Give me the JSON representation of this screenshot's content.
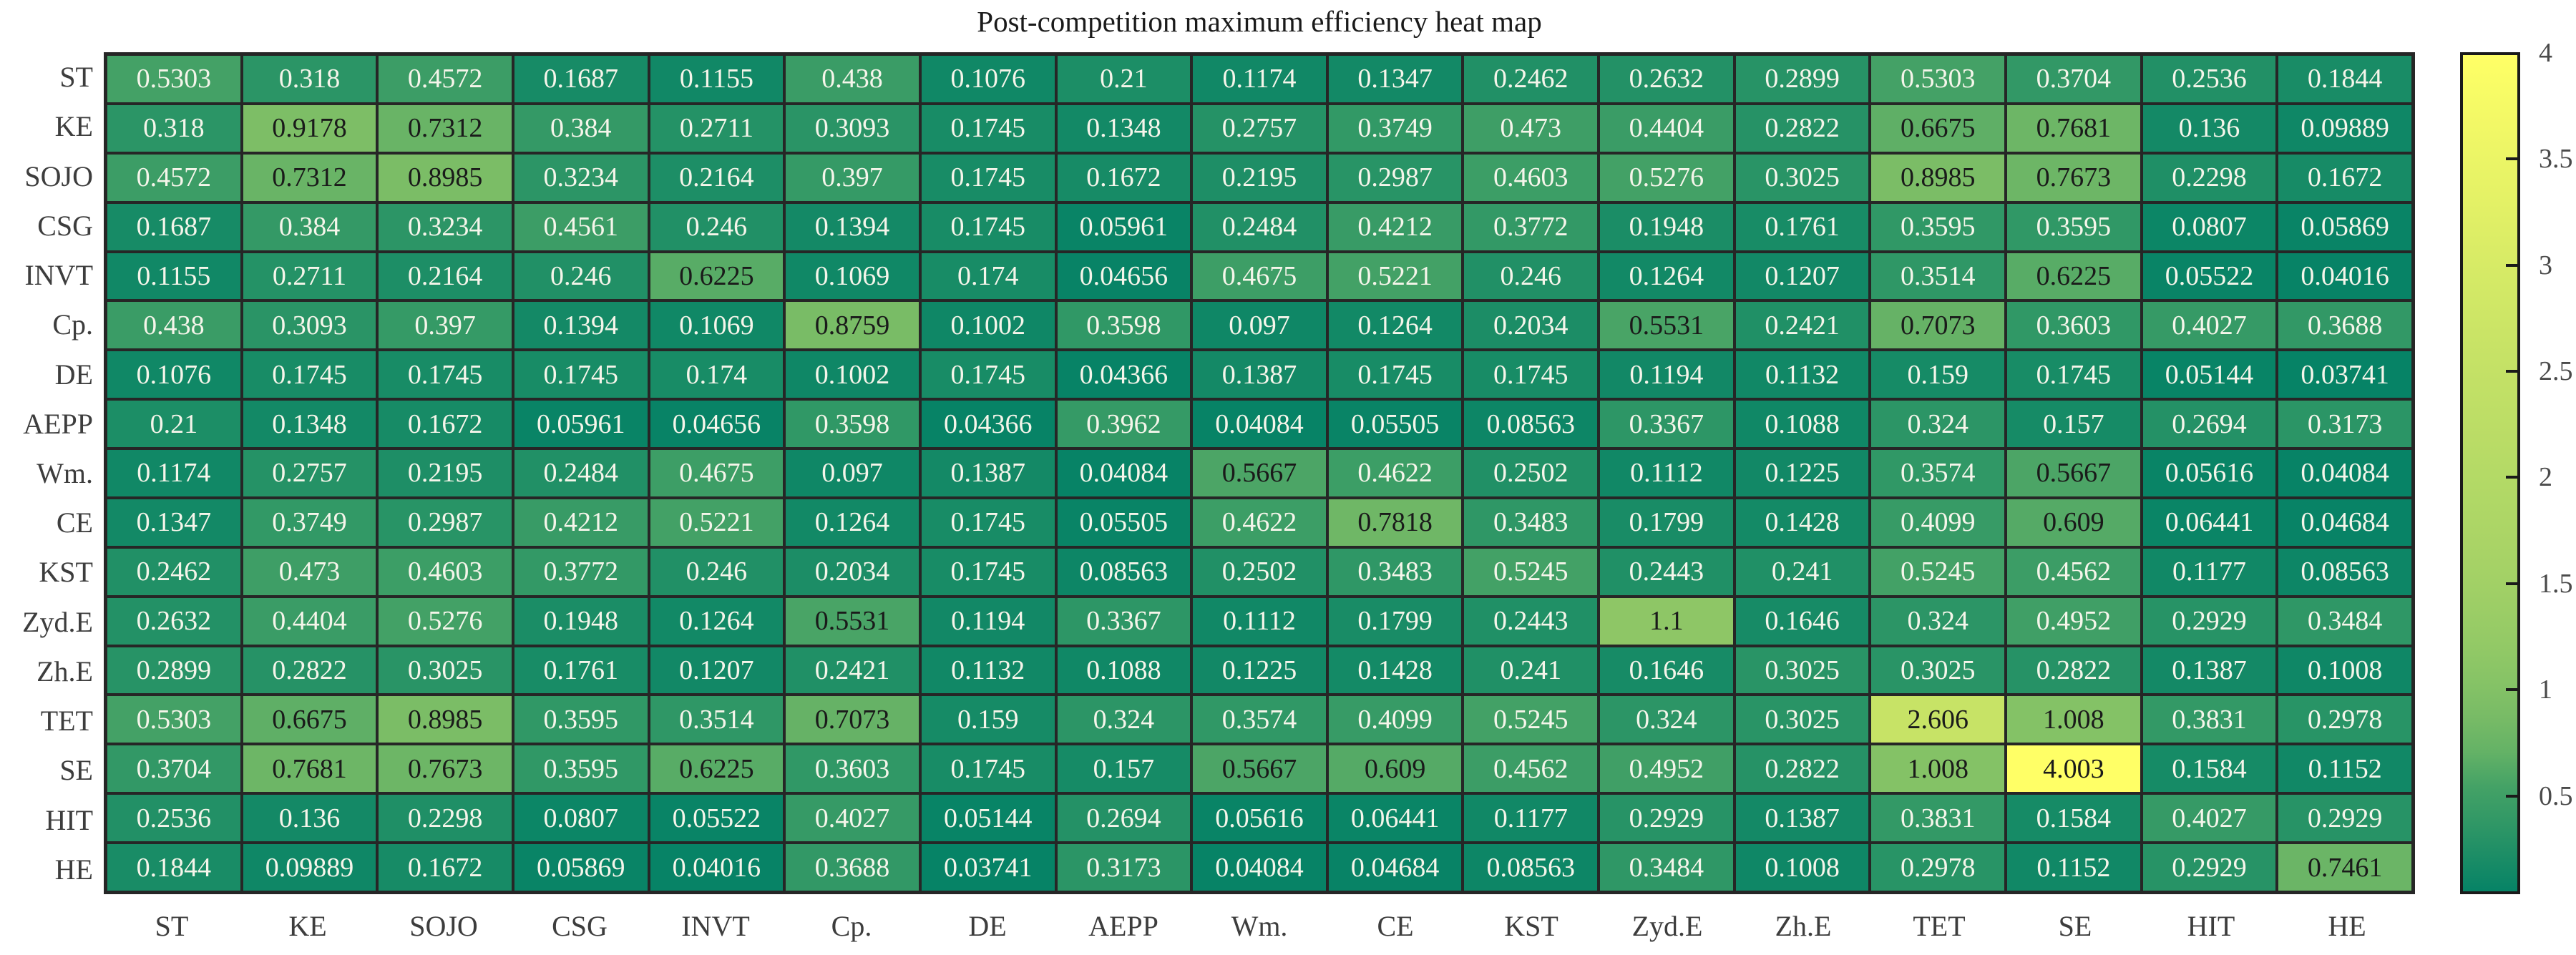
{
  "title": "Post-competition maximum efficiency heat map",
  "chart_data": {
    "type": "heatmap",
    "title": "Post-competition maximum efficiency heat map",
    "x_categories": [
      "ST",
      "KE",
      "SOJO",
      "CSG",
      "INVT",
      "Cp.",
      "DE",
      "AEPP",
      "Wm.",
      "CE",
      "KST",
      "Zyd.E",
      "Zh.E",
      "TET",
      "SE",
      "HIT",
      "HE"
    ],
    "y_categories": [
      "ST",
      "KE",
      "SOJO",
      "CSG",
      "INVT",
      "Cp.",
      "DE",
      "AEPP",
      "Wm.",
      "CE",
      "KST",
      "Zyd.E",
      "Zh.E",
      "TET",
      "SE",
      "HIT",
      "HE"
    ],
    "matrix": [
      [
        0.5303,
        0.318,
        0.4572,
        0.1687,
        0.1155,
        0.438,
        0.1076,
        0.21,
        0.1174,
        0.1347,
        0.2462,
        0.2632,
        0.2899,
        0.5303,
        0.3704,
        0.2536,
        0.1844
      ],
      [
        0.318,
        0.9178,
        0.7312,
        0.384,
        0.2711,
        0.3093,
        0.1745,
        0.1348,
        0.2757,
        0.3749,
        0.473,
        0.4404,
        0.2822,
        0.6675,
        0.7681,
        0.136,
        0.09889
      ],
      [
        0.4572,
        0.7312,
        0.8985,
        0.3234,
        0.2164,
        0.397,
        0.1745,
        0.1672,
        0.2195,
        0.2987,
        0.4603,
        0.5276,
        0.3025,
        0.8985,
        0.7673,
        0.2298,
        0.1672
      ],
      [
        0.1687,
        0.384,
        0.3234,
        0.4561,
        0.246,
        0.1394,
        0.1745,
        0.05961,
        0.2484,
        0.4212,
        0.3772,
        0.1948,
        0.1761,
        0.3595,
        0.3595,
        0.0807,
        0.05869
      ],
      [
        0.1155,
        0.2711,
        0.2164,
        0.246,
        0.6225,
        0.1069,
        0.174,
        0.04656,
        0.4675,
        0.5221,
        0.246,
        0.1264,
        0.1207,
        0.3514,
        0.6225,
        0.05522,
        0.04016
      ],
      [
        0.438,
        0.3093,
        0.397,
        0.1394,
        0.1069,
        0.8759,
        0.1002,
        0.3598,
        0.097,
        0.1264,
        0.2034,
        0.5531,
        0.2421,
        0.7073,
        0.3603,
        0.4027,
        0.3688
      ],
      [
        0.1076,
        0.1745,
        0.1745,
        0.1745,
        0.174,
        0.1002,
        0.1745,
        0.04366,
        0.1387,
        0.1745,
        0.1745,
        0.1194,
        0.1132,
        0.159,
        0.1745,
        0.05144,
        0.03741
      ],
      [
        0.21,
        0.1348,
        0.1672,
        0.05961,
        0.04656,
        0.3598,
        0.04366,
        0.3962,
        0.04084,
        0.05505,
        0.08563,
        0.3367,
        0.1088,
        0.324,
        0.157,
        0.2694,
        0.3173
      ],
      [
        0.1174,
        0.2757,
        0.2195,
        0.2484,
        0.4675,
        0.097,
        0.1387,
        0.04084,
        0.5667,
        0.4622,
        0.2502,
        0.1112,
        0.1225,
        0.3574,
        0.5667,
        0.05616,
        0.04084
      ],
      [
        0.1347,
        0.3749,
        0.2987,
        0.4212,
        0.5221,
        0.1264,
        0.1745,
        0.05505,
        0.4622,
        0.7818,
        0.3483,
        0.1799,
        0.1428,
        0.4099,
        0.609,
        0.06441,
        0.04684
      ],
      [
        0.2462,
        0.473,
        0.4603,
        0.3772,
        0.246,
        0.2034,
        0.1745,
        0.08563,
        0.2502,
        0.3483,
        0.5245,
        0.2443,
        0.241,
        0.5245,
        0.4562,
        0.1177,
        0.08563
      ],
      [
        0.2632,
        0.4404,
        0.5276,
        0.1948,
        0.1264,
        0.5531,
        0.1194,
        0.3367,
        0.1112,
        0.1799,
        0.2443,
        1.1,
        0.1646,
        0.324,
        0.4952,
        0.2929,
        0.3484
      ],
      [
        0.2899,
        0.2822,
        0.3025,
        0.1761,
        0.1207,
        0.2421,
        0.1132,
        0.1088,
        0.1225,
        0.1428,
        0.241,
        0.1646,
        0.3025,
        0.3025,
        0.2822,
        0.1387,
        0.1008
      ],
      [
        0.5303,
        0.6675,
        0.8985,
        0.3595,
        0.3514,
        0.7073,
        0.159,
        0.324,
        0.3574,
        0.4099,
        0.5245,
        0.324,
        0.3025,
        2.606,
        1.008,
        0.3831,
        0.2978
      ],
      [
        0.3704,
        0.7681,
        0.7673,
        0.3595,
        0.6225,
        0.3603,
        0.1745,
        0.157,
        0.5667,
        0.609,
        0.4562,
        0.4952,
        0.2822,
        1.008,
        4.003,
        0.1584,
        0.1152
      ],
      [
        0.2536,
        0.136,
        0.2298,
        0.0807,
        0.05522,
        0.4027,
        0.05144,
        0.2694,
        0.05616,
        0.06441,
        0.1177,
        0.2929,
        0.1387,
        0.3831,
        0.1584,
        0.4027,
        0.2929
      ],
      [
        0.1844,
        0.09889,
        0.1672,
        0.05869,
        0.04016,
        0.3688,
        0.03741,
        0.3173,
        0.04084,
        0.04684,
        0.08563,
        0.3484,
        0.1008,
        0.2978,
        0.1152,
        0.2929,
        0.7461
      ]
    ],
    "colorbar": {
      "position": "right",
      "min": 0.03741,
      "max": 4.003,
      "ticks": [
        4,
        3.5,
        3,
        2.5,
        2,
        1.5,
        1,
        0.5
      ]
    },
    "colormap": {
      "name": "green-to-yellow",
      "low": "#0e8166",
      "mid": "#92c96c",
      "high": "#fcfc60"
    },
    "grid_color": "#262626",
    "value_text_dark": "#1a1a1a",
    "value_text_light": "#f5f5ea",
    "legend": "grid on, values printed in cells, colorbar at right"
  }
}
